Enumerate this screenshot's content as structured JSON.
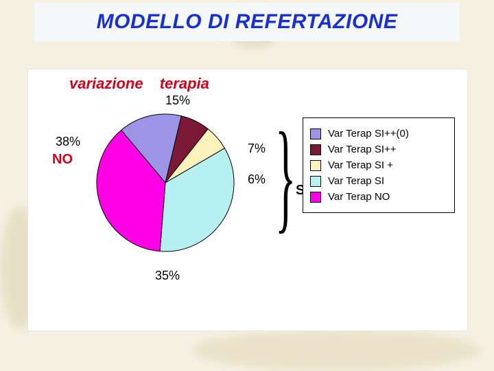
{
  "title": "MODELLO DI REFERTAZIONE",
  "chart": {
    "type": "pie",
    "subtitle_word1": "variazione",
    "subtitle_word2": "terapia",
    "subtitle_color": "#d4001a",
    "subtitle_fontsize": 22,
    "background_color": "#ffffff",
    "slices": [
      {
        "label": "Var Terap SI++(0)",
        "value": 15,
        "color": "#9d94e8",
        "pct_text": "15%"
      },
      {
        "label": "Var Terap SI++",
        "value": 7,
        "color": "#7a1a36",
        "pct_text": "7%"
      },
      {
        "label": "Var Terap SI +",
        "value": 6,
        "color": "#fbf2bc",
        "pct_text": "6%"
      },
      {
        "label": "Var Terap SI",
        "value": 35,
        "color": "#b7f0f0",
        "pct_text": "35%"
      },
      {
        "label": "Var Terap NO",
        "value": 38,
        "color": "#ff00e6",
        "pct_text": "38%"
      }
    ],
    "side_labels": {
      "no": "NO",
      "si": "SI"
    },
    "legend_border_color": "#000000",
    "slice_border_color": "#000000",
    "start_angle_deg": -40
  },
  "page_background": "#f5f0e2"
}
